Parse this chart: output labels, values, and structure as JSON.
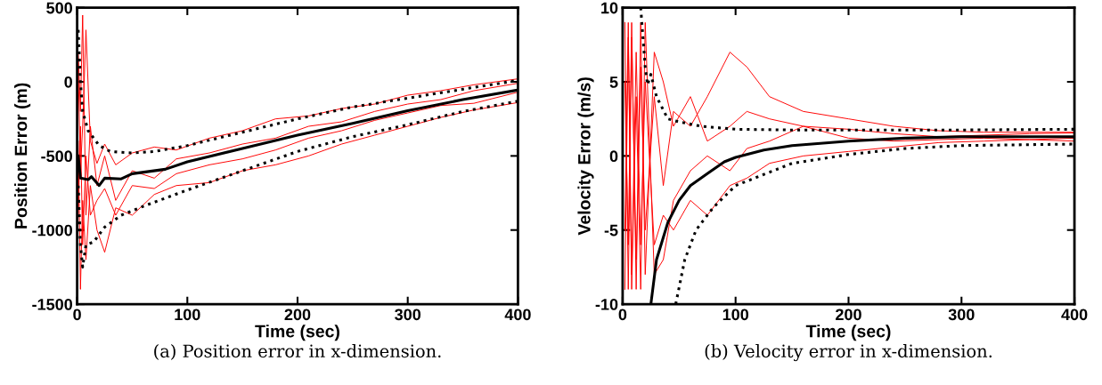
{
  "chart_data": [
    {
      "type": "line",
      "title": "(a) Position error in x-dimension.",
      "xlabel": "Time (sec)",
      "ylabel": "Position Error (m)",
      "xlim": [
        0,
        400
      ],
      "ylim": [
        -1500,
        500
      ],
      "xticks": [
        0,
        100,
        200,
        300,
        400
      ],
      "yticks": [
        -1500,
        -1000,
        -500,
        0,
        500
      ],
      "grid": false,
      "legend": false,
      "series": [
        {
          "color": "#ff0000",
          "x": [
            1,
            3,
            5,
            8,
            12,
            18,
            25,
            35,
            50,
            70,
            90,
            120,
            150,
            180,
            210,
            240,
            270,
            300,
            330,
            360,
            400
          ],
          "values": [
            200,
            -200,
            450,
            -900,
            -300,
            -700,
            -500,
            -800,
            -600,
            -650,
            -520,
            -480,
            -420,
            -380,
            -300,
            -270,
            -200,
            -150,
            -120,
            -60,
            -10
          ]
        },
        {
          "color": "#ff0000",
          "x": [
            1,
            3,
            5,
            8,
            12,
            18,
            25,
            35,
            50,
            70,
            90,
            120,
            150,
            180,
            210,
            240,
            270,
            300,
            330,
            360,
            400
          ],
          "values": [
            -400,
            -1400,
            -800,
            -1200,
            -700,
            -1000,
            -1150,
            -850,
            -900,
            -760,
            -700,
            -680,
            -600,
            -560,
            -500,
            -420,
            -360,
            -300,
            -240,
            -190,
            -140
          ]
        },
        {
          "color": "#ff0000",
          "x": [
            1,
            3,
            5,
            8,
            12,
            18,
            25,
            35,
            50,
            70,
            90,
            120,
            150,
            180,
            210,
            240,
            270,
            300,
            330,
            360,
            400
          ],
          "values": [
            100,
            -600,
            -300,
            350,
            -400,
            -550,
            -420,
            -560,
            -480,
            -440,
            -460,
            -380,
            -330,
            -250,
            -230,
            -180,
            -150,
            -90,
            -60,
            -20,
            20
          ]
        },
        {
          "color": "#ff0000",
          "x": [
            1,
            3,
            5,
            8,
            12,
            18,
            25,
            35,
            50,
            70,
            90,
            120,
            150,
            180,
            210,
            240,
            270,
            300,
            330,
            360,
            400
          ],
          "values": [
            -900,
            -300,
            -1100,
            -500,
            -900,
            -800,
            -720,
            -900,
            -700,
            -720,
            -620,
            -560,
            -520,
            -460,
            -380,
            -330,
            -260,
            -210,
            -160,
            -145,
            -70
          ]
        },
        {
          "color": "#000000",
          "line_style": "solid",
          "x": [
            1,
            3,
            10,
            13,
            20,
            25,
            40,
            50,
            80,
            100,
            150,
            200,
            250,
            300,
            350,
            400
          ],
          "values": [
            -500,
            -650,
            -660,
            -640,
            -700,
            -650,
            -655,
            -620,
            -590,
            -540,
            -450,
            -360,
            -280,
            -195,
            -120,
            -55
          ]
        },
        {
          "color": "#000000",
          "line_style": "dotted",
          "x": [
            1,
            3,
            5,
            10,
            20,
            30,
            50,
            70,
            100,
            150,
            200,
            250,
            300,
            350,
            400
          ],
          "values": [
            350,
            0,
            -200,
            -330,
            -430,
            -470,
            -480,
            -470,
            -430,
            -340,
            -250,
            -170,
            -110,
            -50,
            10
          ]
        },
        {
          "color": "#000000",
          "line_style": "dotted",
          "x": [
            1,
            3,
            5,
            8,
            15,
            25,
            40,
            60,
            100,
            150,
            200,
            250,
            300,
            350,
            400
          ],
          "values": [
            -700,
            -1100,
            -1250,
            -1100,
            -1080,
            -980,
            -900,
            -840,
            -730,
            -600,
            -470,
            -370,
            -290,
            -200,
            -130
          ]
        }
      ]
    },
    {
      "type": "line",
      "title": "(b) Velocity error in x-dimension.",
      "xlabel": "Time (sec)",
      "ylabel": "Velocity Error (m/s)",
      "xlim": [
        0,
        400
      ],
      "ylim": [
        -10,
        10
      ],
      "xticks": [
        0,
        100,
        200,
        300,
        400
      ],
      "yticks": [
        -10,
        -5,
        0,
        5,
        10
      ],
      "grid": false,
      "legend": false,
      "series": [
        {
          "color": "#ff0000",
          "x": [
            2,
            5,
            8,
            12,
            16,
            20,
            28,
            36,
            45,
            60,
            75,
            95,
            110,
            130,
            160,
            200,
            240,
            280,
            320,
            360,
            400
          ],
          "values": [
            9,
            -9,
            8,
            -7,
            6,
            -5,
            4,
            -2,
            3,
            2,
            4,
            7,
            6,
            4,
            3,
            2.5,
            2,
            1.7,
            1.6,
            1.6,
            1.6
          ]
        },
        {
          "color": "#ff0000",
          "x": [
            2,
            5,
            8,
            12,
            16,
            20,
            28,
            36,
            45,
            60,
            75,
            95,
            110,
            130,
            160,
            200,
            240,
            280,
            320,
            360,
            400
          ],
          "values": [
            -9,
            8,
            -8,
            7,
            -6,
            5,
            -6,
            -4,
            -5,
            -3,
            -4,
            -2,
            -1.5,
            -0.5,
            0,
            0.3,
            0.6,
            0.9,
            1.0,
            1.1,
            1.0
          ]
        },
        {
          "color": "#ff0000",
          "x": [
            2,
            5,
            8,
            12,
            16,
            20,
            28,
            36,
            45,
            60,
            75,
            95,
            110,
            130,
            160,
            200,
            240,
            280,
            320,
            360,
            400
          ],
          "values": [
            5,
            -6,
            9,
            -9,
            9,
            -8,
            7,
            5,
            2,
            4,
            1,
            2,
            3,
            2.5,
            2,
            1.8,
            1.5,
            1.3,
            1.4,
            1.5,
            1.55
          ]
        },
        {
          "color": "#ff0000",
          "x": [
            2,
            5,
            8,
            12,
            16,
            20,
            28,
            36,
            45,
            60,
            75,
            95,
            110,
            130,
            160,
            200,
            240,
            280,
            320,
            360,
            400
          ],
          "values": [
            -5,
            9,
            -9,
            4,
            -9,
            9,
            -8,
            -7,
            -3,
            -1,
            0,
            -1,
            0.5,
            1,
            2,
            1.2,
            1.0,
            1.1,
            1.2,
            1.1,
            1.2
          ]
        },
        {
          "color": "#000000",
          "line_style": "solid",
          "x": [
            25,
            30,
            40,
            50,
            60,
            75,
            90,
            100,
            125,
            150,
            200,
            250,
            300,
            400
          ],
          "values": [
            -10,
            -7,
            -4.5,
            -3,
            -2,
            -1.2,
            -0.4,
            -0.1,
            0.4,
            0.7,
            1.0,
            1.2,
            1.3,
            1.3
          ]
        },
        {
          "color": "#000000",
          "line_style": "dotted",
          "x": [
            16,
            20,
            22,
            25,
            30,
            40,
            50,
            70,
            100,
            150,
            200,
            300,
            400
          ],
          "values": [
            10,
            6,
            4.8,
            5.5,
            4,
            2.5,
            2.3,
            2.0,
            1.8,
            1.75,
            1.75,
            1.75,
            1.8
          ]
        },
        {
          "color": "#000000",
          "line_style": "dotted",
          "x": [
            47,
            55,
            65,
            80,
            100,
            150,
            200,
            250,
            300,
            400
          ],
          "values": [
            -10,
            -7,
            -5,
            -3.5,
            -2,
            -0.5,
            0.1,
            0.5,
            0.7,
            0.8
          ]
        }
      ]
    }
  ]
}
